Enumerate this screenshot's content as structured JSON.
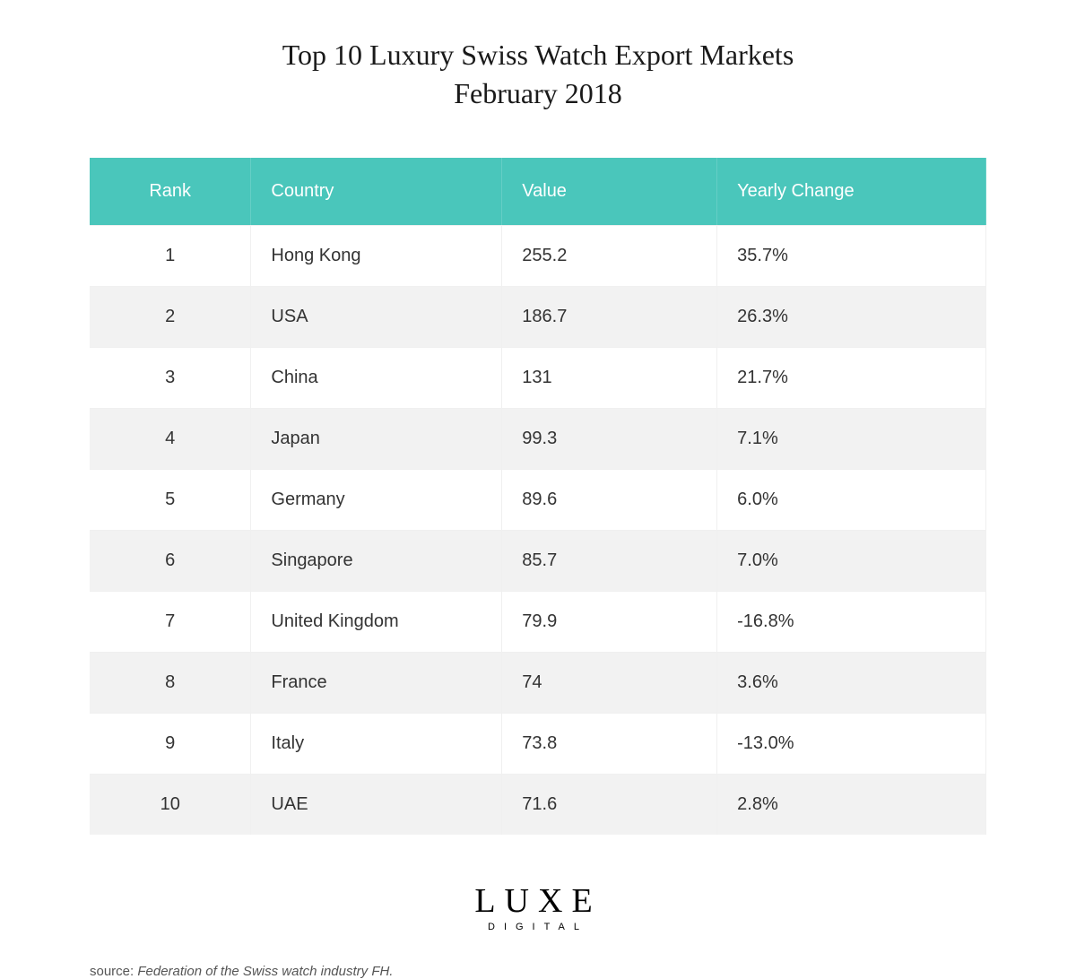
{
  "title": {
    "line1": "Top 10 Luxury Swiss Watch Export Markets",
    "line2": "February 2018",
    "font_family": "Didot serif",
    "fontsize": 32,
    "color": "#1a1a1a"
  },
  "table": {
    "type": "table",
    "header_bg": "#4ac6bb",
    "header_text_color": "#ffffff",
    "row_odd_bg": "#ffffff",
    "row_even_bg": "#f2f2f2",
    "border_color": "#f0f0f0",
    "cell_fontsize": 20,
    "text_color": "#333333",
    "columns": [
      {
        "key": "rank",
        "label": "Rank",
        "width_pct": 18,
        "align": "center"
      },
      {
        "key": "country",
        "label": "Country",
        "width_pct": 28,
        "align": "left"
      },
      {
        "key": "value",
        "label": "Value",
        "width_pct": 24,
        "align": "left"
      },
      {
        "key": "change",
        "label": "Yearly Change",
        "width_pct": 30,
        "align": "left"
      }
    ],
    "rows": [
      {
        "rank": "1",
        "country": "Hong Kong",
        "value": "255.2",
        "change": "35.7%"
      },
      {
        "rank": "2",
        "country": "USA",
        "value": "186.7",
        "change": "26.3%"
      },
      {
        "rank": "3",
        "country": "China",
        "value": "131",
        "change": "21.7%"
      },
      {
        "rank": "4",
        "country": "Japan",
        "value": "99.3",
        "change": "7.1%"
      },
      {
        "rank": "5",
        "country": "Germany",
        "value": "89.6",
        "change": "6.0%"
      },
      {
        "rank": "6",
        "country": "Singapore",
        "value": "85.7",
        "change": "7.0%"
      },
      {
        "rank": "7",
        "country": "United Kingdom",
        "value": "79.9",
        "change": "-16.8%"
      },
      {
        "rank": "8",
        "country": "France",
        "value": "74",
        "change": "3.6%"
      },
      {
        "rank": "9",
        "country": "Italy",
        "value": "73.8",
        "change": "-13.0%"
      },
      {
        "rank": "10",
        "country": "UAE",
        "value": "71.6",
        "change": "2.8%"
      }
    ]
  },
  "brand": {
    "main": "LUXE",
    "sub": "DIGITAL",
    "main_fontsize": 38,
    "main_letterspacing": 10,
    "sub_fontsize": 11,
    "sub_letterspacing": 10,
    "color": "#000000"
  },
  "source": {
    "label": "source: ",
    "text": "Federation of the Swiss watch industry FH.",
    "fontsize": 15,
    "color": "#555555"
  },
  "background_color": "#ffffff"
}
